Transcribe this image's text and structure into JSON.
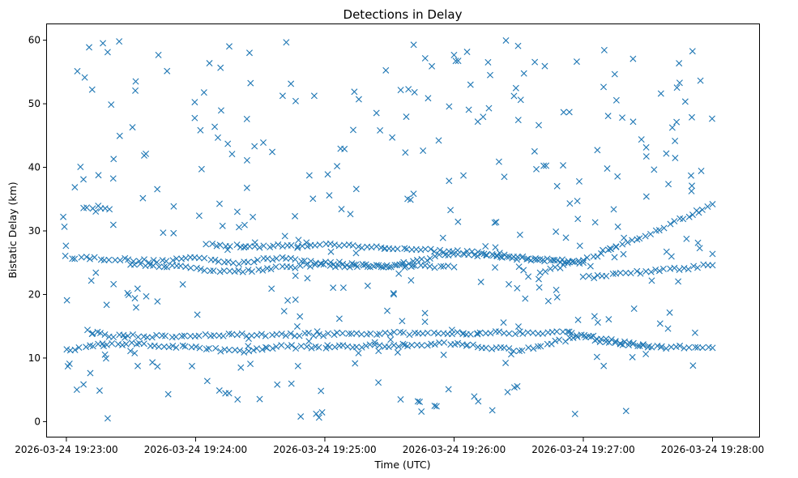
{
  "chart_data": {
    "type": "scatter",
    "title": "Detections in Delay",
    "xlabel": "Time (UTC)",
    "ylabel": "Bistatic Delay (km)",
    "marker": "x",
    "color": "#1f77b4",
    "grid": false,
    "xlim": [
      "2026-03-24 19:22:51",
      "2026-03-24 19:28:22"
    ],
    "ylim": [
      -2.5,
      62.5
    ],
    "x_ticks": [
      "2026-03-24 19:23:00",
      "2026-03-24 19:24:00",
      "2026-03-24 19:25:00",
      "2026-03-24 19:26:00",
      "2026-03-24 19:27:00",
      "2026-03-24 19:28:00"
    ],
    "y_ticks": [
      0,
      10,
      20,
      30,
      40,
      50,
      60
    ],
    "x_range_covered": [
      "2026-03-24 19:22:58",
      "2026-03-24 19:28:00"
    ],
    "tracks": [
      {
        "label": "track near 25.9 km then descending",
        "points": [
          [
            "2026-03-24 19:23:00",
            25.9
          ],
          [
            "2026-03-24 19:23:20",
            25.6
          ],
          [
            "2026-03-24 19:23:40",
            25.2
          ],
          [
            "2026-03-24 19:24:00",
            25.8
          ],
          [
            "2026-03-24 19:24:20",
            25.0
          ],
          [
            "2026-03-24 19:24:40",
            25.8
          ],
          [
            "2026-03-24 19:25:00",
            25.0
          ],
          [
            "2026-03-24 19:25:30",
            24.4
          ],
          [
            "2026-03-24 19:26:00",
            26.5
          ],
          [
            "2026-03-24 19:26:20",
            26.0
          ],
          [
            "2026-03-24 19:26:40",
            25.4
          ],
          [
            "2026-03-24 19:27:00",
            25.0
          ]
        ]
      },
      {
        "label": "track near 33.5 km",
        "points": [
          [
            "2026-03-24 19:23:08",
            33.5
          ],
          [
            "2026-03-24 19:23:14",
            33.3
          ],
          [
            "2026-03-24 19:23:20",
            33.4
          ]
        ]
      },
      {
        "label": "track near 24.5 km",
        "points": [
          [
            "2026-03-24 19:23:30",
            24.8
          ],
          [
            "2026-03-24 19:23:45",
            24.5
          ],
          [
            "2026-03-24 19:24:00",
            24.1
          ],
          [
            "2026-03-24 19:24:20",
            23.6
          ],
          [
            "2026-03-24 19:24:40",
            24.3
          ],
          [
            "2026-03-24 19:25:00",
            24.6
          ],
          [
            "2026-03-24 19:25:20",
            24.4
          ],
          [
            "2026-03-24 19:25:40",
            24.6
          ],
          [
            "2026-03-24 19:26:00",
            24.3
          ]
        ]
      },
      {
        "label": "track near 27.7 km descending",
        "points": [
          [
            "2026-03-24 19:24:05",
            27.8
          ],
          [
            "2026-03-24 19:24:30",
            27.5
          ],
          [
            "2026-03-24 19:25:00",
            27.9
          ],
          [
            "2026-03-24 19:25:30",
            27.3
          ],
          [
            "2026-03-24 19:26:00",
            26.8
          ],
          [
            "2026-03-24 19:26:30",
            25.8
          ],
          [
            "2026-03-24 19:26:55",
            25.2
          ]
        ]
      },
      {
        "label": "track near 12 km",
        "points": [
          [
            "2026-03-24 19:23:00",
            11.2
          ],
          [
            "2026-03-24 19:23:15",
            12.0
          ],
          [
            "2026-03-24 19:23:30",
            12.2
          ],
          [
            "2026-03-24 19:24:00",
            11.6
          ],
          [
            "2026-03-24 19:24:20",
            11.0
          ],
          [
            "2026-03-24 19:24:40",
            11.8
          ],
          [
            "2026-03-24 19:25:00",
            11.7
          ],
          [
            "2026-03-24 19:25:30",
            12.0
          ],
          [
            "2026-03-24 19:26:00",
            12.3
          ],
          [
            "2026-03-24 19:26:30",
            11.2
          ],
          [
            "2026-03-24 19:27:00",
            13.5
          ],
          [
            "2026-03-24 19:27:30",
            11.8
          ],
          [
            "2026-03-24 19:28:00",
            11.6
          ]
        ]
      },
      {
        "label": "track near 14 km",
        "points": [
          [
            "2026-03-24 19:23:10",
            14.3
          ],
          [
            "2026-03-24 19:23:20",
            13.4
          ],
          [
            "2026-03-24 19:26:50",
            14.1
          ],
          [
            "2026-03-24 19:27:10",
            12.6
          ],
          [
            "2026-03-24 19:27:30",
            11.7
          ]
        ]
      },
      {
        "label": "track rising to 34 km",
        "points": [
          [
            "2026-03-24 19:26:40",
            23.4
          ],
          [
            "2026-03-24 19:27:00",
            25.3
          ],
          [
            "2026-03-24 19:27:20",
            28.0
          ],
          [
            "2026-03-24 19:27:40",
            31.0
          ],
          [
            "2026-03-24 19:28:00",
            34.2
          ]
        ]
      },
      {
        "label": "track rising to 24.6 km",
        "points": [
          [
            "2026-03-24 19:27:00",
            22.6
          ],
          [
            "2026-03-24 19:27:20",
            23.3
          ],
          [
            "2026-03-24 19:27:40",
            23.9
          ],
          [
            "2026-03-24 19:28:00",
            24.6
          ]
        ]
      }
    ],
    "scattered_points": {
      "description": "detections spread uniformly between 0.5 and 60 km",
      "approximate_count": 350,
      "y_range": [
        0.5,
        60
      ]
    }
  }
}
